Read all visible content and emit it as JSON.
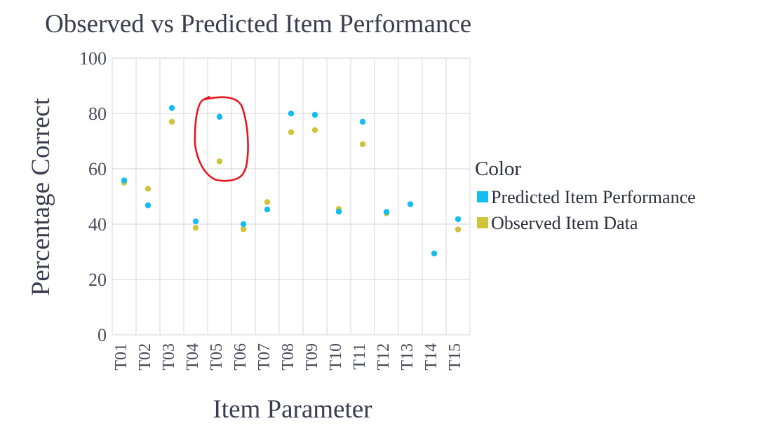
{
  "chart_data": {
    "type": "scatter",
    "title": "Observed vs Predicted Item Performance",
    "xlabel": "Item Parameter",
    "ylabel": "Percentage Correct",
    "categories": [
      "T01",
      "T02",
      "T03",
      "T04",
      "T05",
      "T06",
      "T07",
      "T08",
      "T09",
      "T10",
      "T11",
      "T12",
      "T13",
      "T14",
      "T15"
    ],
    "ylim": [
      0,
      100
    ],
    "yticks": [
      0,
      20,
      40,
      60,
      80,
      100
    ],
    "grid": true,
    "legend": {
      "title": "Color",
      "placement": "right",
      "entries": [
        "Predicted Item Performance",
        "Observed Item Data"
      ]
    },
    "series": [
      {
        "name": "Predicted Item Performance",
        "color": "#13bdf0",
        "values": [
          55.8,
          46.8,
          82.0,
          41.0,
          78.8,
          40.0,
          45.3,
          80.0,
          79.5,
          44.5,
          77.0,
          44.4,
          47.2,
          29.4,
          41.8
        ]
      },
      {
        "name": "Observed Item Data",
        "color": "#cfc43a",
        "values": [
          55.0,
          52.8,
          77.0,
          38.7,
          62.7,
          38.2,
          48.0,
          73.2,
          74.0,
          45.5,
          68.9,
          43.9,
          null,
          null,
          38.1
        ]
      }
    ],
    "annotation": {
      "shape": "hand-drawn-ellipse",
      "color": "#e8171d",
      "category": "T05"
    }
  }
}
